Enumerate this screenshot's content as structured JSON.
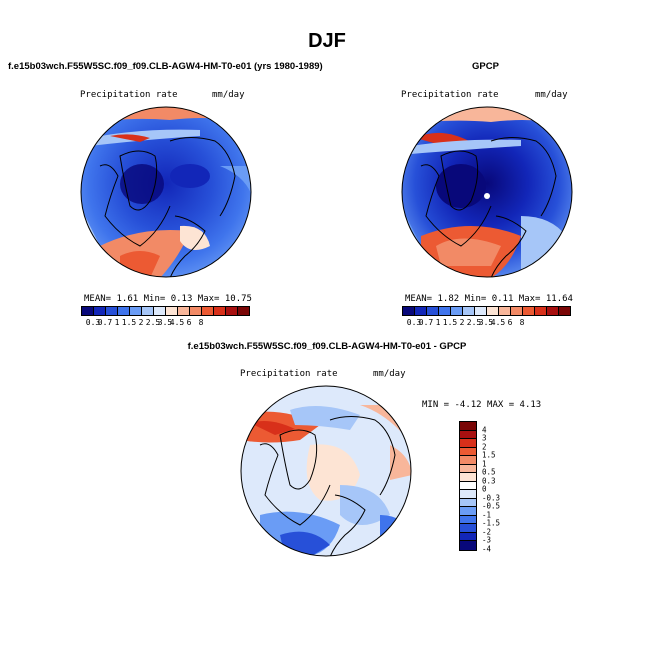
{
  "title": "DJF",
  "panel_left": {
    "title": "f.e15b03wch.F55W5SC.f09_f09.CLB-AGW4-HM-T0-e01 (yrs 1980-1989)",
    "variable": "Precipitation rate",
    "units": "mm/day",
    "stats": "MEAN=   1.61  Min=   0.13  Max=  10.75",
    "colorbar_labels": [
      "0.3",
      "0.7",
      "1",
      "1.5",
      "2",
      "2.5",
      "3.5",
      "4.5",
      "6",
      "8"
    ]
  },
  "panel_right": {
    "title": "GPCP",
    "variable": "Precipitation rate",
    "units": "mm/day",
    "stats": "MEAN=   1.82  Min=   0.11  Max=  11.64",
    "colorbar_labels": [
      "0.3",
      "0.7",
      "1",
      "1.5",
      "2",
      "2.5",
      "3.5",
      "4.5",
      "6",
      "8"
    ]
  },
  "panel_diff": {
    "title": "f.e15b03wch.F55W5SC.f09_f09.CLB-AGW4-HM-T0-e01 - GPCP",
    "variable": "Precipitation rate",
    "units": "mm/day",
    "stats": "MIN = -4.12 MAX =   4.13",
    "colorbar_labels": [
      "4",
      "3",
      "2",
      "1.5",
      "1",
      "0.5",
      "0.3",
      "0",
      "-0.3",
      "-0.5",
      "-1",
      "-1.5",
      "-2",
      "-3",
      "-4"
    ]
  },
  "colors": {
    "abs_scale": [
      "#08087a",
      "#1226b8",
      "#2750d8",
      "#3f74ec",
      "#6a9cf5",
      "#a6c6f8",
      "#dde9fb",
      "#fde4d4",
      "#f8b69a",
      "#f28a66",
      "#ec5a33",
      "#d8301a",
      "#a81010",
      "#7a0606"
    ],
    "diff_scale": [
      "#7a0606",
      "#a81010",
      "#d8301a",
      "#ec5a33",
      "#f28a66",
      "#f8b69a",
      "#fde4d4",
      "#ffffff",
      "#dde9fb",
      "#a6c6f8",
      "#6a9cf5",
      "#3f74ec",
      "#2750d8",
      "#1226b8",
      "#08087a"
    ]
  }
}
